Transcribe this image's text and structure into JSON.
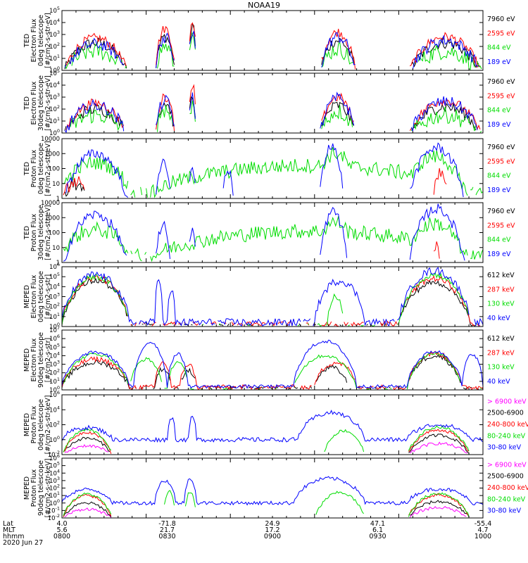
{
  "title": "NOAA19",
  "chart_data": [
    {
      "type": "line",
      "ylabel": [
        "TED",
        "Electron Flux",
        "0deg telescope",
        "[#/cm2-s-str-eV]"
      ],
      "scale": "log",
      "ylim": [
        1,
        100000
      ],
      "yticks": [
        "10^0",
        "10^1",
        "10^2",
        "10^3",
        "10^4",
        "10^5"
      ],
      "series": [
        {
          "name": "7960 eV",
          "color": "#000000"
        },
        {
          "name": "2595 eV",
          "color": "#ff0000"
        },
        {
          "name": "844 eV",
          "color": "#00dd00"
        },
        {
          "name": "189 eV",
          "color": "#0000ff"
        }
      ]
    },
    {
      "type": "line",
      "ylabel": [
        "TED",
        "Electron Flux",
        "30deg telescope",
        "[#/cm2-s-str-eV]"
      ],
      "scale": "log",
      "ylim": [
        1,
        100000
      ],
      "yticks": [
        "10^0",
        "10^1",
        "10^2",
        "10^3",
        "10^4",
        "10^5"
      ],
      "series": [
        {
          "name": "7960 eV",
          "color": "#000000"
        },
        {
          "name": "2595 eV",
          "color": "#ff0000"
        },
        {
          "name": "844 eV",
          "color": "#00dd00"
        },
        {
          "name": "189 eV",
          "color": "#0000ff"
        }
      ]
    },
    {
      "type": "line",
      "ylabel": [
        "TED",
        "Proton Flux",
        "0deg telescope",
        "[#/cm2-s-str-eV]"
      ],
      "scale": "log",
      "ylim": [
        1,
        10000
      ],
      "yticks": [
        "1",
        "10",
        "100",
        "1000",
        "10000"
      ],
      "series": [
        {
          "name": "7960 eV",
          "color": "#000000"
        },
        {
          "name": "2595 eV",
          "color": "#ff0000"
        },
        {
          "name": "844 eV",
          "color": "#00dd00"
        },
        {
          "name": "189 eV",
          "color": "#0000ff"
        }
      ]
    },
    {
      "type": "line",
      "ylabel": [
        "TED",
        "Proton Flux",
        "30deg telescope",
        "[#/cm2-s-str-eV]"
      ],
      "scale": "log",
      "ylim": [
        1,
        10000
      ],
      "yticks": [
        "1",
        "10",
        "100",
        "1000",
        "10000"
      ],
      "series": [
        {
          "name": "7960 eV",
          "color": "#000000"
        },
        {
          "name": "2595 eV",
          "color": "#ff0000"
        },
        {
          "name": "844 eV",
          "color": "#00dd00"
        },
        {
          "name": "189 eV",
          "color": "#0000ff"
        }
      ]
    },
    {
      "type": "line",
      "ylabel": [
        "MEPED",
        "Electron Flux",
        "0deg telescope",
        "[#/cm2-s-str]"
      ],
      "scale": "log",
      "ylim": [
        1,
        1000000
      ],
      "yticks": [
        "10^0",
        "10^1",
        "10^2",
        "10^3",
        "10^4",
        "10^5",
        "10^6"
      ],
      "series": [
        {
          "name": "612 keV",
          "color": "#000000"
        },
        {
          "name": "287 keV",
          "color": "#ff0000"
        },
        {
          "name": "130 keV",
          "color": "#00dd00"
        },
        {
          "name": "40 keV",
          "color": "#0000ff"
        }
      ]
    },
    {
      "type": "line",
      "ylabel": [
        "MEPED",
        "Electron Flux",
        "90deg telescope",
        "[#/cm2-s-str]"
      ],
      "scale": "log",
      "ylim": [
        1,
        10000000
      ],
      "yticks": [
        "10^0",
        "10^1",
        "10^2",
        "10^3",
        "10^4",
        "10^5",
        "10^6",
        "10^7"
      ],
      "series": [
        {
          "name": "612 keV",
          "color": "#000000"
        },
        {
          "name": "287 keV",
          "color": "#ff0000"
        },
        {
          "name": "130 keV",
          "color": "#00dd00"
        },
        {
          "name": "40 keV",
          "color": "#0000ff"
        }
      ]
    },
    {
      "type": "line",
      "ylabel": [
        "MEPED",
        "Proton Flux",
        "0deg telescope",
        "[#/cm2-s-str-keV]"
      ],
      "scale": "log",
      "ylim": [
        0.01,
        1000000
      ],
      "yticks": [
        "10^-2",
        "10^0",
        "10^2",
        "10^4",
        "10^6"
      ],
      "series": [
        {
          "name": "> 6900 keV",
          "color": "#ff00ff"
        },
        {
          "name": "2500-6900",
          "color": "#000000"
        },
        {
          "name": "240-800 keV",
          "color": "#ff0000"
        },
        {
          "name": "80-240 keV",
          "color": "#00dd00"
        },
        {
          "name": "30-80 keV",
          "color": "#0000ff"
        }
      ]
    },
    {
      "type": "line",
      "ylabel": [
        "MEPED",
        "Proton Flux",
        "90deg telescope",
        "[#/cm2-s-str-keV]"
      ],
      "scale": "log",
      "ylim": [
        0.01,
        1000000
      ],
      "yticks": [
        "10^-2",
        "10^-1",
        "10^0",
        "10^1",
        "10^2",
        "10^3",
        "10^4",
        "10^5",
        "10^6"
      ],
      "series": [
        {
          "name": "> 6900 keV",
          "color": "#ff00ff"
        },
        {
          "name": "2500-6900",
          "color": "#000000"
        },
        {
          "name": "240-800 keV",
          "color": "#ff0000"
        },
        {
          "name": "80-240 keV",
          "color": "#00dd00"
        },
        {
          "name": "30-80 keV",
          "color": "#0000ff"
        }
      ]
    }
  ],
  "x_axis": {
    "row_labels": [
      "Lat",
      "MLT",
      "hhmm",
      "2020 Jun 27"
    ],
    "ticks": [
      {
        "lat": "4.0",
        "mlt": "5.6",
        "hhmm": "0800"
      },
      {
        "lat": "-71.8",
        "mlt": "21.7",
        "hhmm": "0830"
      },
      {
        "lat": "24.9",
        "mlt": "17.2",
        "hhmm": "0900"
      },
      {
        "lat": "47.1",
        "mlt": "6.1",
        "hhmm": "0930"
      },
      {
        "lat": "-55.4",
        "mlt": "4.7",
        "hhmm": "1000"
      }
    ]
  }
}
